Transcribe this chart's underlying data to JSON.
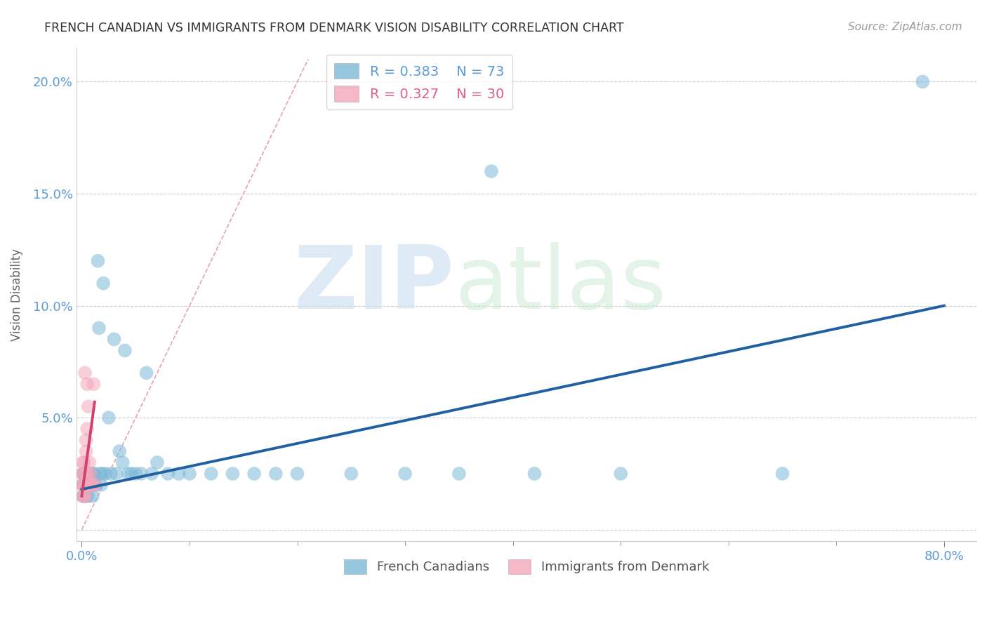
{
  "title": "FRENCH CANADIAN VS IMMIGRANTS FROM DENMARK VISION DISABILITY CORRELATION CHART",
  "source_text": "Source: ZipAtlas.com",
  "ylabel": "Vision Disability",
  "xlabel": "",
  "xlim": [
    -0.005,
    0.83
  ],
  "ylim": [
    -0.005,
    0.215
  ],
  "xticks": [
    0.0,
    0.8
  ],
  "xticklabels": [
    "0.0%",
    "80.0%"
  ],
  "yticks": [
    0.0,
    0.05,
    0.1,
    0.15,
    0.2
  ],
  "yticklabels": [
    "",
    "5.0%",
    "10.0%",
    "15.0%",
    "20.0%"
  ],
  "blue_color": "#7db8d8",
  "pink_color": "#f4a7ba",
  "blue_line_color": "#2060a0",
  "pink_line_color": "#d04070",
  "diag_line_color": "#e8a0b0",
  "legend_R_blue": "R = 0.383",
  "legend_N_blue": "N = 73",
  "legend_R_pink": "R = 0.327",
  "legend_N_pink": "N = 30",
  "legend_label_blue": "French Canadians",
  "legend_label_pink": "Immigrants from Denmark",
  "watermark_zip": "ZIP",
  "watermark_atlas": "atlas",
  "blue_scatter_x": [
    0.001,
    0.001,
    0.001,
    0.001,
    0.002,
    0.002,
    0.002,
    0.002,
    0.002,
    0.003,
    0.003,
    0.003,
    0.003,
    0.004,
    0.004,
    0.004,
    0.004,
    0.005,
    0.005,
    0.005,
    0.006,
    0.006,
    0.006,
    0.007,
    0.007,
    0.007,
    0.008,
    0.008,
    0.009,
    0.009,
    0.01,
    0.01,
    0.01,
    0.011,
    0.012,
    0.013,
    0.015,
    0.016,
    0.017,
    0.018,
    0.019,
    0.02,
    0.022,
    0.025,
    0.027,
    0.03,
    0.032,
    0.035,
    0.038,
    0.04,
    0.043,
    0.046,
    0.05,
    0.055,
    0.06,
    0.065,
    0.07,
    0.08,
    0.09,
    0.1,
    0.12,
    0.14,
    0.16,
    0.18,
    0.2,
    0.25,
    0.3,
    0.35,
    0.38,
    0.42,
    0.5,
    0.65,
    0.78
  ],
  "blue_scatter_y": [
    0.02,
    0.025,
    0.015,
    0.02,
    0.02,
    0.025,
    0.015,
    0.02,
    0.025,
    0.02,
    0.025,
    0.015,
    0.02,
    0.02,
    0.025,
    0.02,
    0.015,
    0.02,
    0.025,
    0.02,
    0.02,
    0.025,
    0.015,
    0.02,
    0.025,
    0.02,
    0.02,
    0.025,
    0.02,
    0.025,
    0.02,
    0.025,
    0.015,
    0.02,
    0.025,
    0.02,
    0.12,
    0.09,
    0.025,
    0.02,
    0.025,
    0.11,
    0.025,
    0.05,
    0.025,
    0.085,
    0.025,
    0.035,
    0.03,
    0.08,
    0.025,
    0.025,
    0.025,
    0.025,
    0.07,
    0.025,
    0.03,
    0.025,
    0.025,
    0.025,
    0.025,
    0.025,
    0.025,
    0.025,
    0.025,
    0.025,
    0.025,
    0.025,
    0.16,
    0.025,
    0.025,
    0.025,
    0.2
  ],
  "pink_scatter_x": [
    0.001,
    0.001,
    0.001,
    0.001,
    0.002,
    0.002,
    0.002,
    0.002,
    0.002,
    0.003,
    0.003,
    0.003,
    0.003,
    0.004,
    0.004,
    0.004,
    0.004,
    0.005,
    0.005,
    0.005,
    0.006,
    0.006,
    0.007,
    0.007,
    0.008,
    0.008,
    0.009,
    0.01,
    0.011,
    0.012
  ],
  "pink_scatter_y": [
    0.02,
    0.025,
    0.03,
    0.015,
    0.02,
    0.03,
    0.025,
    0.015,
    0.02,
    0.02,
    0.025,
    0.015,
    0.07,
    0.025,
    0.04,
    0.035,
    0.02,
    0.025,
    0.065,
    0.045,
    0.055,
    0.02,
    0.03,
    0.02,
    0.025,
    0.02,
    0.02,
    0.02,
    0.065,
    0.02
  ],
  "blue_trend_x": [
    0.0,
    0.8
  ],
  "blue_trend_y": [
    0.018,
    0.1
  ],
  "pink_trend_x": [
    0.0,
    0.012
  ],
  "pink_trend_y": [
    0.015,
    0.057
  ],
  "diag_line_x": [
    0.0,
    0.21
  ],
  "diag_line_y": [
    0.0,
    0.21
  ]
}
